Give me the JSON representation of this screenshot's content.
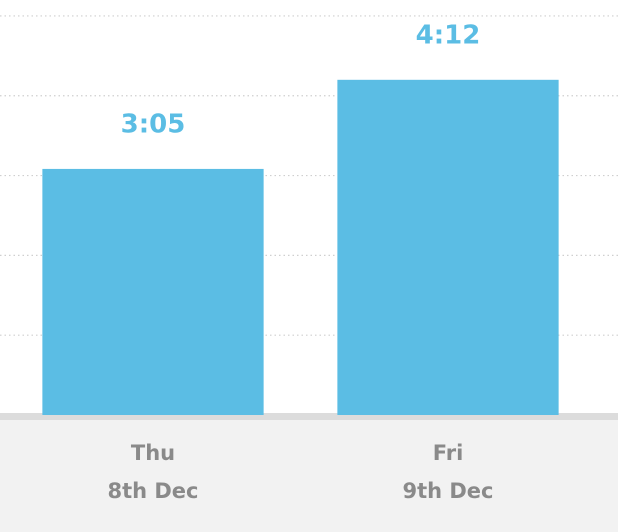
{
  "chart_data": {
    "type": "bar",
    "categories": [
      [
        "Thu",
        "8th Dec"
      ],
      [
        "Fri",
        "9th Dec"
      ]
    ],
    "values": [
      185,
      252
    ],
    "value_labels": [
      "3:05",
      "4:12"
    ],
    "color": "#5bbde4",
    "ylim": [
      0,
      312
    ],
    "yticks": [
      0,
      60,
      120,
      180,
      240,
      300
    ],
    "grid": true
  }
}
